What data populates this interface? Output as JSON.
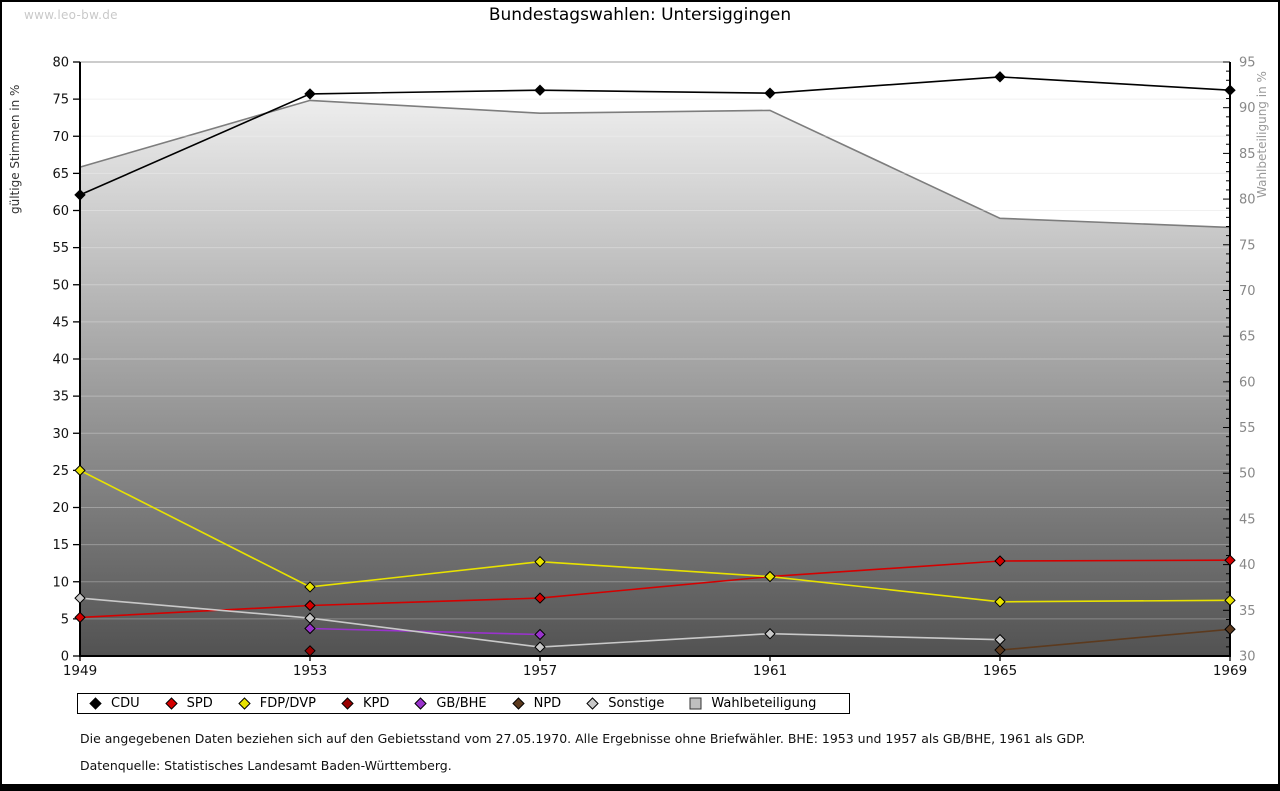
{
  "watermark": "www.leo-bw.de",
  "title": "Bundestagswahlen: Untersiggingen",
  "footnotes": {
    "line1": "Die angegebenen Daten beziehen sich auf den Gebietsstand vom 27.05.1970. Alle Ergebnisse ohne Briefwähler. BHE: 1953 und 1957 als GB/BHE, 1961 als GDP.",
    "line2": "Datenquelle: Statistisches Landesamt Baden-Württemberg."
  },
  "chart_data": {
    "type": "line",
    "categories": [
      1949,
      1953,
      1957,
      1961,
      1965,
      1969
    ],
    "left_axis": {
      "label": "gültige Stimmen in %",
      "min": 0,
      "max": 80,
      "tick_step": 5
    },
    "right_axis": {
      "label": "Wahlbeteiligung in %",
      "min": 30,
      "max": 95,
      "tick_step": 5,
      "minor_step": 1
    },
    "grid": true,
    "legend_position": "bottom",
    "series": [
      {
        "name": "CDU",
        "axis": "left",
        "style": "line",
        "color": "#000000",
        "marker": "diamond",
        "points": [
          [
            1949,
            62.1
          ],
          [
            1953,
            75.7
          ],
          [
            1957,
            76.2
          ],
          [
            1961,
            75.8
          ],
          [
            1965,
            78.0
          ],
          [
            1969,
            76.2
          ]
        ]
      },
      {
        "name": "SPD",
        "axis": "left",
        "style": "line",
        "color": "#d40000",
        "marker": "diamond",
        "points": [
          [
            1949,
            5.2
          ],
          [
            1953,
            6.8
          ],
          [
            1957,
            7.8
          ],
          [
            1961,
            10.7
          ],
          [
            1965,
            12.8
          ],
          [
            1969,
            12.9
          ]
        ]
      },
      {
        "name": "FDP/DVP",
        "axis": "left",
        "style": "line",
        "color": "#e8e200",
        "marker": "diamond",
        "points": [
          [
            1949,
            25.0
          ],
          [
            1953,
            9.3
          ],
          [
            1957,
            12.7
          ],
          [
            1961,
            10.7
          ],
          [
            1965,
            7.3
          ],
          [
            1969,
            7.5
          ]
        ]
      },
      {
        "name": "KPD",
        "axis": "left",
        "style": "line",
        "color": "#990000",
        "marker": "diamond",
        "points": [
          [
            1953,
            0.7
          ]
        ]
      },
      {
        "name": "GB/BHE",
        "axis": "left",
        "style": "line",
        "color": "#9933cc",
        "marker": "diamond",
        "points": [
          [
            1953,
            3.7
          ],
          [
            1957,
            2.9
          ]
        ]
      },
      {
        "name": "NPD",
        "axis": "left",
        "style": "line",
        "color": "#5c3a1e",
        "marker": "diamond",
        "points": [
          [
            1965,
            0.8
          ],
          [
            1969,
            3.6
          ]
        ]
      },
      {
        "name": "Sonstige",
        "axis": "left",
        "style": "line",
        "color": "#c9c9c9",
        "marker": "diamond",
        "points": [
          [
            1949,
            7.8
          ],
          [
            1953,
            5.1
          ],
          [
            1957,
            1.2
          ],
          [
            1961,
            3.0
          ],
          [
            1965,
            2.2
          ]
        ]
      },
      {
        "name": "Wahlbeteiligung",
        "axis": "right",
        "style": "area",
        "color": "#7d7d7d",
        "marker": "square",
        "fill_gradient": [
          "#f8f8f8",
          "#525252"
        ],
        "points": [
          [
            1949,
            83.5
          ],
          [
            1953,
            90.8
          ],
          [
            1957,
            89.4
          ],
          [
            1961,
            89.7
          ],
          [
            1965,
            77.9
          ],
          [
            1969,
            76.9
          ]
        ]
      }
    ]
  }
}
